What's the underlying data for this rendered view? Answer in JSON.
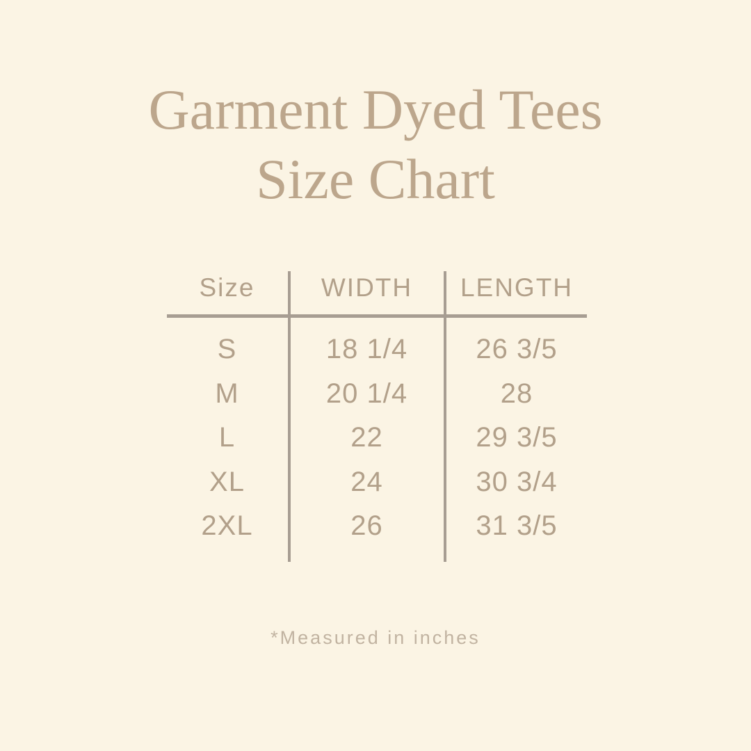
{
  "title": {
    "line1": "Garment Dyed Tees",
    "line2": "Size Chart"
  },
  "table": {
    "headers": [
      "Size",
      "WIDTH",
      "LENGTH"
    ],
    "rows": [
      {
        "size": "S",
        "width": "18 1/4",
        "length": "26 3/5"
      },
      {
        "size": "M",
        "width": "20 1/4",
        "length": "28"
      },
      {
        "size": "L",
        "width": "22",
        "length": "29 3/5"
      },
      {
        "size": "XL",
        "width": "24",
        "length": "30 3/4"
      },
      {
        "size": "2XL",
        "width": "26",
        "length": "31 3/5"
      }
    ]
  },
  "footnote": {
    "text": "*Measured in inches"
  },
  "colors": {
    "background": "#FBF4E4",
    "title_text": "#BCA68C",
    "table_text": "#B2A08A",
    "rule_lines": "#A79D92",
    "footnote_text": "#C1B3A1"
  }
}
